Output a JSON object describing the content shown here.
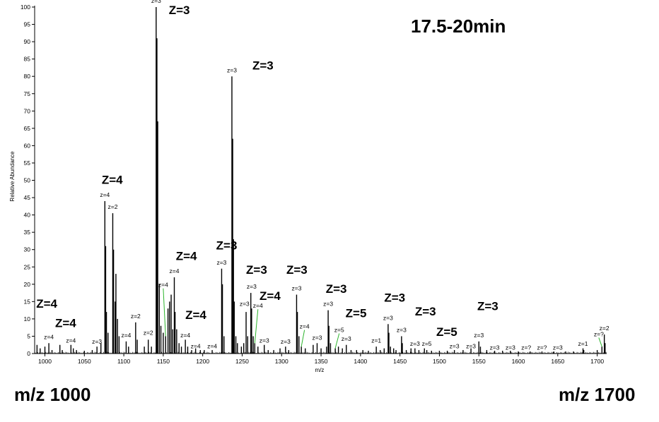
{
  "window_label": "17.5-20min",
  "range_left_label": "m/z 1000",
  "range_right_label": "m/z 1700",
  "colors": {
    "spectrum": "#000000",
    "leader_line": "#2db52d",
    "background": "#ffffff"
  },
  "chart_data": {
    "type": "bar",
    "xlabel": "m/z",
    "ylabel": "Relative Abundance",
    "xlim": [
      987,
      1712
    ],
    "ylim": [
      0,
      100
    ],
    "xticks": [
      1000,
      1050,
      1100,
      1150,
      1200,
      1250,
      1300,
      1350,
      1400,
      1450,
      1500,
      1550,
      1600,
      1650,
      1700
    ],
    "yticks": [
      0,
      5,
      10,
      15,
      20,
      25,
      30,
      35,
      40,
      45,
      50,
      55,
      60,
      65,
      70,
      75,
      80,
      85,
      90,
      95,
      100
    ],
    "peaks": [
      {
        "x": 990,
        "y": 2.5
      },
      {
        "x": 994,
        "y": 1.5
      },
      {
        "x": 1000,
        "y": 2
      },
      {
        "x": 1005,
        "y": 3
      },
      {
        "x": 1009,
        "y": 1
      },
      {
        "x": 1019,
        "y": 2.5
      },
      {
        "x": 1022,
        "y": 1
      },
      {
        "x": 1033,
        "y": 2.5
      },
      {
        "x": 1036,
        "y": 1.5
      },
      {
        "x": 1040,
        "y": 1
      },
      {
        "x": 1050,
        "y": 0.8
      },
      {
        "x": 1060,
        "y": 1
      },
      {
        "x": 1066,
        "y": 2
      },
      {
        "x": 1071,
        "y": 3
      },
      {
        "x": 1076,
        "y": 44
      },
      {
        "x": 1077,
        "y": 31
      },
      {
        "x": 1078,
        "y": 12
      },
      {
        "x": 1080,
        "y": 6
      },
      {
        "x": 1086,
        "y": 40.5
      },
      {
        "x": 1087,
        "y": 30
      },
      {
        "x": 1089,
        "y": 15
      },
      {
        "x": 1090,
        "y": 23
      },
      {
        "x": 1092,
        "y": 10
      },
      {
        "x": 1094,
        "y": 5
      },
      {
        "x": 1103,
        "y": 3.5
      },
      {
        "x": 1106,
        "y": 2
      },
      {
        "x": 1115,
        "y": 9
      },
      {
        "x": 1117,
        "y": 4
      },
      {
        "x": 1126,
        "y": 2
      },
      {
        "x": 1131,
        "y": 4
      },
      {
        "x": 1135,
        "y": 2
      },
      {
        "x": 1141,
        "y": 100
      },
      {
        "x": 1142,
        "y": 91
      },
      {
        "x": 1143,
        "y": 67
      },
      {
        "x": 1145,
        "y": 20
      },
      {
        "x": 1147,
        "y": 8
      },
      {
        "x": 1150,
        "y": 6
      },
      {
        "x": 1153,
        "y": 5
      },
      {
        "x": 1156,
        "y": 13
      },
      {
        "x": 1158,
        "y": 15
      },
      {
        "x": 1160,
        "y": 17
      },
      {
        "x": 1162,
        "y": 7
      },
      {
        "x": 1164,
        "y": 22
      },
      {
        "x": 1165,
        "y": 12
      },
      {
        "x": 1167,
        "y": 7
      },
      {
        "x": 1170,
        "y": 3
      },
      {
        "x": 1173,
        "y": 2
      },
      {
        "x": 1178,
        "y": 4
      },
      {
        "x": 1181,
        "y": 2
      },
      {
        "x": 1186,
        "y": 1
      },
      {
        "x": 1191,
        "y": 1.5
      },
      {
        "x": 1197,
        "y": 1
      },
      {
        "x": 1202,
        "y": 1
      },
      {
        "x": 1212,
        "y": 1
      },
      {
        "x": 1224,
        "y": 24.5
      },
      {
        "x": 1225,
        "y": 20
      },
      {
        "x": 1227,
        "y": 5
      },
      {
        "x": 1237,
        "y": 80
      },
      {
        "x": 1238,
        "y": 62
      },
      {
        "x": 1239,
        "y": 33
      },
      {
        "x": 1240,
        "y": 15
      },
      {
        "x": 1242,
        "y": 5
      },
      {
        "x": 1244,
        "y": 3
      },
      {
        "x": 1249,
        "y": 2
      },
      {
        "x": 1252,
        "y": 3
      },
      {
        "x": 1255,
        "y": 12
      },
      {
        "x": 1257,
        "y": 5
      },
      {
        "x": 1261,
        "y": 17.5
      },
      {
        "x": 1262,
        "y": 13
      },
      {
        "x": 1264,
        "y": 5
      },
      {
        "x": 1266,
        "y": 3
      },
      {
        "x": 1270,
        "y": 2
      },
      {
        "x": 1278,
        "y": 2.5
      },
      {
        "x": 1283,
        "y": 1
      },
      {
        "x": 1290,
        "y": 1
      },
      {
        "x": 1298,
        "y": 1.5
      },
      {
        "x": 1305,
        "y": 2
      },
      {
        "x": 1309,
        "y": 1
      },
      {
        "x": 1319,
        "y": 17
      },
      {
        "x": 1320,
        "y": 12
      },
      {
        "x": 1322,
        "y": 5
      },
      {
        "x": 1325,
        "y": 2
      },
      {
        "x": 1330,
        "y": 1.5
      },
      {
        "x": 1340,
        "y": 2.5
      },
      {
        "x": 1345,
        "y": 3
      },
      {
        "x": 1350,
        "y": 1.5
      },
      {
        "x": 1357,
        "y": 2
      },
      {
        "x": 1359,
        "y": 12.5
      },
      {
        "x": 1360,
        "y": 8
      },
      {
        "x": 1362,
        "y": 3
      },
      {
        "x": 1368,
        "y": 1.5
      },
      {
        "x": 1372,
        "y": 2
      },
      {
        "x": 1377,
        "y": 1.5
      },
      {
        "x": 1382,
        "y": 2.5
      },
      {
        "x": 1388,
        "y": 1
      },
      {
        "x": 1395,
        "y": 1
      },
      {
        "x": 1403,
        "y": 1
      },
      {
        "x": 1410,
        "y": 0.8
      },
      {
        "x": 1420,
        "y": 2
      },
      {
        "x": 1425,
        "y": 1
      },
      {
        "x": 1430,
        "y": 1.5
      },
      {
        "x": 1435,
        "y": 8.5
      },
      {
        "x": 1436,
        "y": 6
      },
      {
        "x": 1438,
        "y": 2
      },
      {
        "x": 1442,
        "y": 1.5
      },
      {
        "x": 1445,
        "y": 1
      },
      {
        "x": 1452,
        "y": 5
      },
      {
        "x": 1453,
        "y": 3
      },
      {
        "x": 1458,
        "y": 1
      },
      {
        "x": 1464,
        "y": 1.5
      },
      {
        "x": 1469,
        "y": 1.5
      },
      {
        "x": 1474,
        "y": 1
      },
      {
        "x": 1481,
        "y": 1.5
      },
      {
        "x": 1484,
        "y": 1
      },
      {
        "x": 1490,
        "y": 0.8
      },
      {
        "x": 1500,
        "y": 0.8
      },
      {
        "x": 1510,
        "y": 0.8
      },
      {
        "x": 1519,
        "y": 1
      },
      {
        "x": 1530,
        "y": 1
      },
      {
        "x": 1540,
        "y": 1.5
      },
      {
        "x": 1550,
        "y": 3.5
      },
      {
        "x": 1552,
        "y": 2
      },
      {
        "x": 1560,
        "y": 1
      },
      {
        "x": 1570,
        "y": 0.8
      },
      {
        "x": 1580,
        "y": 0.8
      },
      {
        "x": 1590,
        "y": 0.8
      },
      {
        "x": 1600,
        "y": 0.6
      },
      {
        "x": 1615,
        "y": 0.6
      },
      {
        "x": 1630,
        "y": 0.6
      },
      {
        "x": 1645,
        "y": 0.6
      },
      {
        "x": 1660,
        "y": 0.6
      },
      {
        "x": 1670,
        "y": 0.6
      },
      {
        "x": 1682,
        "y": 1.5
      },
      {
        "x": 1683,
        "y": 1
      },
      {
        "x": 1700,
        "y": 1
      },
      {
        "x": 1706,
        "y": 2
      },
      {
        "x": 1709,
        "y": 5.5
      },
      {
        "x": 1710,
        "y": 3
      }
    ],
    "peak_labels": [
      {
        "text": "z=3",
        "x": 1141,
        "y": 100,
        "tx": 1141,
        "ty": 101
      },
      {
        "text": "z=3",
        "x": 1237,
        "y": 80,
        "tx": 1237,
        "ty": 81
      },
      {
        "text": "z=4",
        "x": 1076,
        "y": 44,
        "tx": 1076,
        "ty": 45
      },
      {
        "text": "z=2",
        "x": 1086,
        "y": 40.5,
        "tx": 1086,
        "ty": 41.5
      },
      {
        "text": "z=3",
        "x": 1224,
        "y": 24.5,
        "tx": 1224,
        "ty": 25.5
      },
      {
        "text": "z=4",
        "x": 1164,
        "y": 22,
        "tx": 1164,
        "ty": 23
      },
      {
        "text": "z=4",
        "x": 1153,
        "y": 5,
        "tx": 1150,
        "ty": 19,
        "leader": true
      },
      {
        "text": "z=3",
        "x": 1261,
        "y": 17.5,
        "tx": 1262,
        "ty": 18.5
      },
      {
        "text": "z=3",
        "x": 1319,
        "y": 17,
        "tx": 1319,
        "ty": 18
      },
      {
        "text": "z=3",
        "x": 1255,
        "y": 12,
        "tx": 1253,
        "ty": 13.5
      },
      {
        "text": "z=4",
        "x": 1266,
        "y": 3,
        "tx": 1270,
        "ty": 13,
        "leader": true
      },
      {
        "text": "z=3",
        "x": 1359,
        "y": 12.5,
        "tx": 1359,
        "ty": 13.5
      },
      {
        "text": "z=2",
        "x": 1115,
        "y": 9,
        "tx": 1115,
        "ty": 10
      },
      {
        "text": "z=3",
        "x": 1435,
        "y": 8.5,
        "tx": 1435,
        "ty": 9.5
      },
      {
        "text": "z=4",
        "x": 1325,
        "y": 2,
        "tx": 1329,
        "ty": 7,
        "leader": true
      },
      {
        "text": "z=5",
        "x": 1368,
        "y": 1.5,
        "tx": 1373,
        "ty": 6,
        "leader": true
      },
      {
        "text": "z=3",
        "x": 1452,
        "y": 5,
        "tx": 1452,
        "ty": 6
      },
      {
        "text": "z=2",
        "x": 1709,
        "y": 5.5,
        "tx": 1709,
        "ty": 6.5
      },
      {
        "text": "z=?",
        "x": 1706,
        "y": 2,
        "tx": 1702,
        "ty": 4.8,
        "leader": true
      },
      {
        "text": "z=2",
        "x": 1131,
        "y": 4,
        "tx": 1131,
        "ty": 5.2
      },
      {
        "text": "z=4",
        "x": 1103,
        "y": 3.5,
        "tx": 1103,
        "ty": 4.5
      },
      {
        "text": "z=4",
        "x": 1178,
        "y": 4,
        "tx": 1178,
        "ty": 4.5
      },
      {
        "text": "z=3",
        "x": 1550,
        "y": 3.5,
        "tx": 1550,
        "ty": 4.5
      },
      {
        "text": "z=4",
        "x": 1005,
        "y": 3,
        "tx": 1005,
        "ty": 4
      },
      {
        "text": "z=3",
        "x": 1345,
        "y": 3,
        "tx": 1345,
        "ty": 3.8
      },
      {
        "text": "z=3",
        "x": 1382,
        "y": 2.5,
        "tx": 1382,
        "ty": 3.5
      },
      {
        "text": "z=1",
        "x": 1420,
        "y": 2,
        "tx": 1420,
        "ty": 3
      },
      {
        "text": "z=4",
        "x": 1033,
        "y": 2.5,
        "tx": 1033,
        "ty": 3
      },
      {
        "text": "z=3",
        "x": 1278,
        "y": 2.5,
        "tx": 1278,
        "ty": 3
      },
      {
        "text": "z=3",
        "x": 1305,
        "y": 2,
        "tx": 1305,
        "ty": 2.6
      },
      {
        "text": "z=3",
        "x": 1066,
        "y": 2,
        "tx": 1066,
        "ty": 2.6
      },
      {
        "text": "z=3",
        "x": 1469,
        "y": 1.5,
        "tx": 1469,
        "ty": 2
      },
      {
        "text": "z=5",
        "x": 1481,
        "y": 1.5,
        "tx": 1484,
        "ty": 2
      },
      {
        "text": "z=1",
        "x": 1682,
        "y": 1.5,
        "tx": 1682,
        "ty": 2
      },
      {
        "text": "z=4",
        "x": 1191,
        "y": 1.5,
        "tx": 1191,
        "ty": 1.3
      },
      {
        "text": "z=4",
        "x": 1212,
        "y": 1,
        "tx": 1212,
        "ty": 1.3
      },
      {
        "text": "z=3",
        "x": 1519,
        "y": 1,
        "tx": 1519,
        "ty": 1.3
      },
      {
        "text": "z=3",
        "x": 1540,
        "y": 1.5,
        "tx": 1540,
        "ty": 1.3
      },
      {
        "text": "z=3",
        "x": 1570,
        "y": 0.8,
        "tx": 1570,
        "ty": 0.9
      },
      {
        "text": "z=3",
        "x": 1590,
        "y": 0.8,
        "tx": 1590,
        "ty": 0.9
      },
      {
        "text": "z=?",
        "x": 1610,
        "y": 0.6,
        "tx": 1610,
        "ty": 0.9
      },
      {
        "text": "z=?",
        "x": 1630,
        "y": 0.6,
        "tx": 1630,
        "ty": 0.9
      },
      {
        "text": "z=3",
        "x": 1650,
        "y": 0.6,
        "tx": 1650,
        "ty": 0.9
      }
    ],
    "charge_annotations": [
      {
        "text": "Z=3",
        "x": 1157,
        "y": 98
      },
      {
        "text": "Z=3",
        "x": 1263,
        "y": 82
      },
      {
        "text": "Z=4",
        "x": 1072,
        "y": 49
      },
      {
        "text": "Z=4",
        "x": 1166,
        "y": 27
      },
      {
        "text": "Z=3",
        "x": 1217,
        "y": 30
      },
      {
        "text": "Z=3",
        "x": 1255,
        "y": 23
      },
      {
        "text": "Z=3",
        "x": 1306,
        "y": 23
      },
      {
        "text": "Z=4",
        "x": 1272,
        "y": 15.5
      },
      {
        "text": "Z=3",
        "x": 1356,
        "y": 17.5
      },
      {
        "text": "Z=4",
        "x": 1178,
        "y": 10
      },
      {
        "text": "Z=5",
        "x": 1381,
        "y": 10.5
      },
      {
        "text": "Z=3",
        "x": 1430,
        "y": 15
      },
      {
        "text": "Z=3",
        "x": 1469,
        "y": 11
      },
      {
        "text": "Z=3",
        "x": 1548,
        "y": 12.5
      },
      {
        "text": "Z=4",
        "x": 989,
        "y": 13.2
      },
      {
        "text": "Z=4",
        "x": 1013,
        "y": 7.6
      },
      {
        "text": "Z=5",
        "x": 1496,
        "y": 5.1
      }
    ]
  }
}
